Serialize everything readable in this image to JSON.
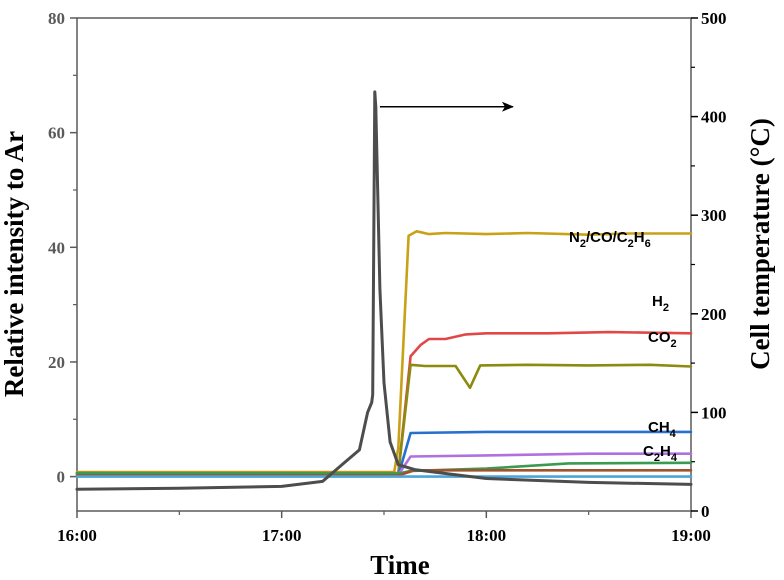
{
  "chart_data": {
    "type": "line",
    "xlabel": "Time",
    "ylabel_left": "Relative intensity to Ar",
    "ylabel_right": "Cell temperature (°C)",
    "x_ticks": [
      "16:00",
      "17:00",
      "18:00",
      "19:00"
    ],
    "x_range_hours": [
      16.0,
      19.0
    ],
    "ylim_left": [
      -6,
      80
    ],
    "ylim_right": [
      0,
      500
    ],
    "y_ticks_left": [
      0,
      20,
      40,
      60,
      80
    ],
    "y_ticks_right": [
      0,
      100,
      200,
      300,
      400,
      500
    ],
    "grid": false,
    "series": [
      {
        "name": "N2/CO/C2H6",
        "label_parts": [
          [
            "N",
            ""
          ],
          [
            "2",
            "sub"
          ],
          [
            "/CO/C",
            ""
          ],
          [
            "2",
            "sub"
          ],
          [
            "H",
            ""
          ],
          [
            "6",
            "sub"
          ]
        ],
        "axis": "left",
        "color": "#c9a116",
        "points": [
          [
            16.0,
            0.8
          ],
          [
            17.55,
            0.8
          ],
          [
            17.57,
            5
          ],
          [
            17.62,
            42
          ],
          [
            17.66,
            42.8
          ],
          [
            17.72,
            42.3
          ],
          [
            17.8,
            42.5
          ],
          [
            18.0,
            42.3
          ],
          [
            18.2,
            42.5
          ],
          [
            18.5,
            42.2
          ],
          [
            18.7,
            42.4
          ],
          [
            19.0,
            42.4
          ]
        ]
      },
      {
        "name": "H2",
        "label_parts": [
          [
            "H",
            ""
          ],
          [
            "2",
            "sub"
          ]
        ],
        "axis": "left",
        "color": "#e04848",
        "points": [
          [
            16.0,
            0.6
          ],
          [
            17.57,
            0.6
          ],
          [
            17.63,
            21
          ],
          [
            17.68,
            23
          ],
          [
            17.72,
            24
          ],
          [
            17.8,
            24
          ],
          [
            17.9,
            24.8
          ],
          [
            18.0,
            25
          ],
          [
            18.3,
            25
          ],
          [
            18.6,
            25.2
          ],
          [
            19.0,
            25
          ]
        ]
      },
      {
        "name": "CO2",
        "label_parts": [
          [
            "CO",
            ""
          ],
          [
            "2",
            "sub"
          ]
        ],
        "axis": "left",
        "color": "#8b8b10",
        "points": [
          [
            16.0,
            0.6
          ],
          [
            17.57,
            0.6
          ],
          [
            17.63,
            19.5
          ],
          [
            17.7,
            19.3
          ],
          [
            17.85,
            19.3
          ],
          [
            17.92,
            15.5
          ],
          [
            17.97,
            19.4
          ],
          [
            18.2,
            19.5
          ],
          [
            18.5,
            19.4
          ],
          [
            18.8,
            19.5
          ],
          [
            19.0,
            19.2
          ]
        ]
      },
      {
        "name": "CH4",
        "label_parts": [
          [
            "CH",
            ""
          ],
          [
            "4",
            "sub"
          ]
        ],
        "axis": "left",
        "color": "#2670d0",
        "points": [
          [
            16.0,
            0.2
          ],
          [
            17.57,
            0.2
          ],
          [
            17.63,
            7.6
          ],
          [
            18.0,
            7.8
          ],
          [
            18.5,
            7.8
          ],
          [
            19.0,
            7.8
          ]
        ]
      },
      {
        "name": "C2H4",
        "label_parts": [
          [
            "C",
            ""
          ],
          [
            "2",
            "sub"
          ],
          [
            "H",
            ""
          ],
          [
            "4",
            "sub"
          ]
        ],
        "axis": "left",
        "color": "#b070e0",
        "points": [
          [
            16.0,
            0.3
          ],
          [
            17.57,
            0.3
          ],
          [
            17.63,
            3.5
          ],
          [
            18.0,
            3.7
          ],
          [
            18.5,
            4
          ],
          [
            19.0,
            4
          ]
        ]
      },
      {
        "name": "",
        "axis": "left",
        "color": "#3a9a50",
        "points": [
          [
            16.0,
            0.6
          ],
          [
            17.57,
            0.5
          ],
          [
            17.63,
            1
          ],
          [
            18.0,
            1.4
          ],
          [
            18.4,
            2.3
          ],
          [
            19.0,
            2.4
          ]
        ]
      },
      {
        "name": "",
        "axis": "left",
        "color": "#a0522d",
        "points": [
          [
            16.0,
            0.2
          ],
          [
            17.57,
            0.2
          ],
          [
            17.65,
            1.1
          ],
          [
            18.5,
            1.1
          ],
          [
            19.0,
            1.1
          ]
        ]
      },
      {
        "name": "",
        "axis": "left",
        "color": "#4aa5d8",
        "points": [
          [
            16.0,
            0.0
          ],
          [
            19.0,
            0.0
          ]
        ]
      },
      {
        "name": "Cell temperature",
        "axis": "right",
        "color": "#4d4d4d",
        "points": [
          [
            16.0,
            22
          ],
          [
            16.5,
            23
          ],
          [
            17.0,
            25
          ],
          [
            17.2,
            30
          ],
          [
            17.3,
            48
          ],
          [
            17.38,
            62
          ],
          [
            17.42,
            100
          ],
          [
            17.44,
            110
          ],
          [
            17.445,
            118
          ],
          [
            17.455,
            425
          ],
          [
            17.46,
            410
          ],
          [
            17.48,
            225
          ],
          [
            17.5,
            130
          ],
          [
            17.53,
            70
          ],
          [
            17.57,
            47
          ],
          [
            17.65,
            42
          ],
          [
            17.8,
            38
          ],
          [
            18.0,
            33
          ],
          [
            18.5,
            29
          ],
          [
            19.0,
            27
          ]
        ]
      }
    ],
    "annotation": {
      "type": "arrow",
      "from": [
        17.48,
        410
      ],
      "to": [
        18.13,
        410
      ],
      "axis": "right",
      "meaning": "curve refers to right axis"
    }
  }
}
